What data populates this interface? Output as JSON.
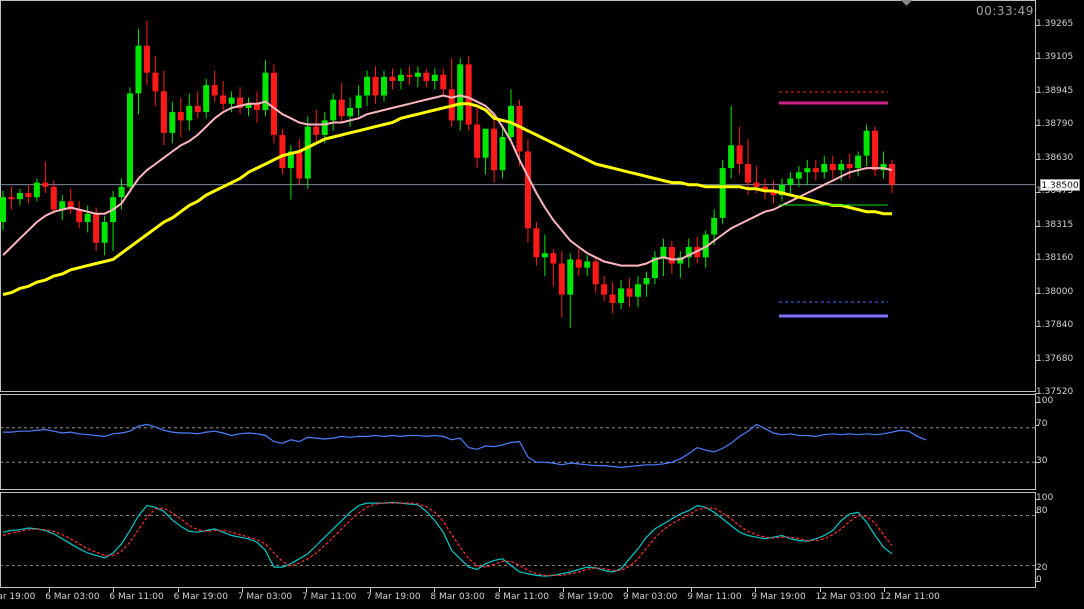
{
  "clock": "00:33:49",
  "current_price": "1.38500",
  "colors": {
    "bull": "#00e600",
    "bear": "#ff1a1a",
    "ma_fast": "#ffb6c1",
    "ma_slow": "#ffff00",
    "rsi": "#4a7fff",
    "stoch_main": "#00c8c8",
    "stoch_signal": "#ff3030",
    "upper_line": "#cc2288",
    "lower_line": "#8070ff"
  },
  "price_axis": {
    "labels": [
      "1.39265",
      "1.39105",
      "1.38945",
      "1.38790",
      "1.38630",
      "1.38475",
      "1.38315",
      "1.38160",
      "1.38000",
      "1.37840",
      "1.37680",
      "1.37520"
    ],
    "range": [
      1.3752,
      1.39265
    ]
  },
  "rsi_axis": {
    "labels": [
      "100",
      "70",
      "30"
    ],
    "levels": [
      70,
      30
    ]
  },
  "stoch_axis": {
    "labels": [
      "100",
      "80",
      "20",
      "0"
    ],
    "levels": [
      80,
      20
    ]
  },
  "time_labels": [
    "5 Mar 19:00",
    "6 Mar 03:00",
    "6 Mar 11:00",
    "6 Mar 19:00",
    "7 Mar 03:00",
    "7 Mar 11:00",
    "7 Mar 19:00",
    "8 Mar 03:00",
    "8 Mar 11:00",
    "8 Mar 19:00",
    "9 Mar 03:00",
    "9 Mar 11:00",
    "9 Mar 19:00",
    "12 Mar 03:00",
    "12 Mar 11:00"
  ],
  "chart_data": {
    "type": "candlestick",
    "candles": [
      [
        1.3832,
        1.3847,
        1.3828,
        1.3844
      ],
      [
        1.3844,
        1.3849,
        1.3838,
        1.3843
      ],
      [
        1.3843,
        1.3848,
        1.384,
        1.3846
      ],
      [
        1.3846,
        1.385,
        1.3841,
        1.3844
      ],
      [
        1.3844,
        1.3853,
        1.3842,
        1.3851
      ],
      [
        1.3851,
        1.3861,
        1.3846,
        1.3849
      ],
      [
        1.3849,
        1.3852,
        1.3836,
        1.3838
      ],
      [
        1.3838,
        1.3845,
        1.3833,
        1.3842
      ],
      [
        1.3842,
        1.3848,
        1.3836,
        1.3838
      ],
      [
        1.3838,
        1.3842,
        1.3829,
        1.3832
      ],
      [
        1.3832,
        1.384,
        1.3827,
        1.3836
      ],
      [
        1.3836,
        1.3839,
        1.3818,
        1.3822
      ],
      [
        1.3822,
        1.3835,
        1.3816,
        1.3832
      ],
      [
        1.3832,
        1.3847,
        1.3818,
        1.3844
      ],
      [
        1.3844,
        1.3853,
        1.3838,
        1.3849
      ],
      [
        1.3849,
        1.3897,
        1.3846,
        1.3894
      ],
      [
        1.3894,
        1.3925,
        1.3884,
        1.3917
      ],
      [
        1.3917,
        1.3929,
        1.3898,
        1.3904
      ],
      [
        1.3904,
        1.3912,
        1.3888,
        1.3895
      ],
      [
        1.3895,
        1.3905,
        1.3869,
        1.3875
      ],
      [
        1.3875,
        1.389,
        1.387,
        1.3885
      ],
      [
        1.3885,
        1.3892,
        1.3873,
        1.3881
      ],
      [
        1.3881,
        1.3894,
        1.3876,
        1.3888
      ],
      [
        1.3888,
        1.3895,
        1.3882,
        1.3885
      ],
      [
        1.3885,
        1.3901,
        1.3882,
        1.3898
      ],
      [
        1.3898,
        1.3905,
        1.389,
        1.3893
      ],
      [
        1.3893,
        1.39,
        1.3886,
        1.3889
      ],
      [
        1.3889,
        1.3895,
        1.3885,
        1.3892
      ],
      [
        1.3892,
        1.3897,
        1.3884,
        1.3887
      ],
      [
        1.3887,
        1.3892,
        1.3883,
        1.3889
      ],
      [
        1.3889,
        1.3895,
        1.388,
        1.3886
      ],
      [
        1.3886,
        1.391,
        1.3883,
        1.3904
      ],
      [
        1.3904,
        1.3908,
        1.387,
        1.3874
      ],
      [
        1.3874,
        1.3877,
        1.3855,
        1.3858
      ],
      [
        1.3858,
        1.3869,
        1.3843,
        1.3866
      ],
      [
        1.3866,
        1.3872,
        1.385,
        1.3853
      ],
      [
        1.3853,
        1.3883,
        1.3848,
        1.3878
      ],
      [
        1.3878,
        1.3886,
        1.387,
        1.3874
      ],
      [
        1.3874,
        1.3885,
        1.387,
        1.3881
      ],
      [
        1.3881,
        1.3894,
        1.3876,
        1.3891
      ],
      [
        1.3891,
        1.3899,
        1.388,
        1.3883
      ],
      [
        1.3883,
        1.3892,
        1.3878,
        1.3887
      ],
      [
        1.3887,
        1.3898,
        1.3883,
        1.3893
      ],
      [
        1.3893,
        1.3905,
        1.3888,
        1.3902
      ],
      [
        1.3902,
        1.3907,
        1.3889,
        1.3893
      ],
      [
        1.3893,
        1.3905,
        1.389,
        1.3902
      ],
      [
        1.3902,
        1.3906,
        1.3896,
        1.39
      ],
      [
        1.39,
        1.3906,
        1.3896,
        1.3903
      ],
      [
        1.3903,
        1.3907,
        1.3898,
        1.3902
      ],
      [
        1.3902,
        1.3907,
        1.3897,
        1.3904
      ],
      [
        1.3904,
        1.3906,
        1.3897,
        1.39
      ],
      [
        1.39,
        1.3906,
        1.3896,
        1.3903
      ],
      [
        1.3903,
        1.3906,
        1.3893,
        1.3896
      ],
      [
        1.3896,
        1.3911,
        1.3878,
        1.3881
      ],
      [
        1.3881,
        1.3911,
        1.3876,
        1.3908
      ],
      [
        1.3908,
        1.3912,
        1.3876,
        1.3879
      ],
      [
        1.3879,
        1.3887,
        1.3858,
        1.3863
      ],
      [
        1.3863,
        1.3877,
        1.3855,
        1.3877
      ],
      [
        1.3877,
        1.3882,
        1.3851,
        1.3857
      ],
      [
        1.3857,
        1.3878,
        1.3853,
        1.3873
      ],
      [
        1.3873,
        1.3896,
        1.387,
        1.3888
      ],
      [
        1.3888,
        1.3891,
        1.3859,
        1.3866
      ],
      [
        1.3866,
        1.3872,
        1.3822,
        1.3829
      ],
      [
        1.3829,
        1.3832,
        1.3811,
        1.3815
      ],
      [
        1.3815,
        1.3826,
        1.3806,
        1.3817
      ],
      [
        1.3817,
        1.3819,
        1.3801,
        1.3812
      ],
      [
        1.3812,
        1.3818,
        1.3786,
        1.3797
      ],
      [
        1.3797,
        1.3817,
        1.3781,
        1.3814
      ],
      [
        1.3814,
        1.3819,
        1.3806,
        1.381
      ],
      [
        1.381,
        1.3816,
        1.3806,
        1.3813
      ],
      [
        1.3813,
        1.3815,
        1.3798,
        1.3802
      ],
      [
        1.3802,
        1.3806,
        1.3794,
        1.3797
      ],
      [
        1.3797,
        1.3803,
        1.3788,
        1.3793
      ],
      [
        1.3793,
        1.3804,
        1.379,
        1.38
      ],
      [
        1.38,
        1.3805,
        1.3791,
        1.3796
      ],
      [
        1.3796,
        1.3806,
        1.3791,
        1.3802
      ],
      [
        1.3802,
        1.3808,
        1.3796,
        1.3805
      ],
      [
        1.3805,
        1.3818,
        1.3802,
        1.3815
      ],
      [
        1.3815,
        1.3824,
        1.3806,
        1.382
      ],
      [
        1.382,
        1.3823,
        1.3807,
        1.3812
      ],
      [
        1.3812,
        1.3818,
        1.3805,
        1.3815
      ],
      [
        1.3815,
        1.3824,
        1.381,
        1.382
      ],
      [
        1.382,
        1.3825,
        1.3812,
        1.3815
      ],
      [
        1.3815,
        1.3828,
        1.381,
        1.3826
      ],
      [
        1.3826,
        1.3838,
        1.3821,
        1.3834
      ],
      [
        1.3834,
        1.3862,
        1.3831,
        1.3858
      ],
      [
        1.3858,
        1.3888,
        1.3853,
        1.3869
      ],
      [
        1.3869,
        1.3878,
        1.3855,
        1.386
      ],
      [
        1.386,
        1.3872,
        1.3845,
        1.3851
      ],
      [
        1.3851,
        1.3859,
        1.3846,
        1.3849
      ],
      [
        1.3849,
        1.3853,
        1.3843,
        1.3847
      ],
      [
        1.3847,
        1.3852,
        1.3841,
        1.3845
      ],
      [
        1.3845,
        1.3853,
        1.3842,
        1.385
      ],
      [
        1.385,
        1.3856,
        1.3845,
        1.3853
      ],
      [
        1.3853,
        1.3859,
        1.3849,
        1.3856
      ],
      [
        1.3856,
        1.3862,
        1.385,
        1.3858
      ],
      [
        1.3858,
        1.3862,
        1.3852,
        1.3856
      ],
      [
        1.3856,
        1.3864,
        1.3853,
        1.386
      ],
      [
        1.386,
        1.3864,
        1.3853,
        1.3857
      ],
      [
        1.3857,
        1.3862,
        1.3852,
        1.386
      ],
      [
        1.386,
        1.3865,
        1.3853,
        1.3858
      ],
      [
        1.3858,
        1.3866,
        1.3854,
        1.3864
      ],
      [
        1.3864,
        1.3879,
        1.3859,
        1.3876
      ],
      [
        1.3876,
        1.3878,
        1.3854,
        1.3857
      ],
      [
        1.3857,
        1.3866,
        1.3853,
        1.386
      ],
      [
        1.386,
        1.3862,
        1.3846,
        1.385
      ]
    ],
    "ma_fast": [
      1.3816,
      1.382,
      1.3824,
      1.3828,
      1.3832,
      1.3835,
      1.3837,
      1.3838,
      1.3839,
      1.3838,
      1.3837,
      1.3836,
      1.3836,
      1.3838,
      1.3841,
      1.3847,
      1.3853,
      1.3857,
      1.386,
      1.3863,
      1.3866,
      1.3869,
      1.3871,
      1.3874,
      1.3878,
      1.3882,
      1.3885,
      1.3887,
      1.3888,
      1.3889,
      1.3889,
      1.389,
      1.3887,
      1.3884,
      1.3882,
      1.388,
      1.3879,
      1.3879,
      1.3879,
      1.388,
      1.388,
      1.3881,
      1.3882,
      1.3884,
      1.3885,
      1.3886,
      1.3887,
      1.3888,
      1.3889,
      1.389,
      1.3891,
      1.3892,
      1.3893,
      1.3892,
      1.3893,
      1.3892,
      1.389,
      1.3888,
      1.3884,
      1.3878,
      1.3871,
      1.3862,
      1.3854,
      1.3846,
      1.3839,
      1.3833,
      1.3828,
      1.3823,
      1.382,
      1.3817,
      1.3815,
      1.3813,
      1.3812,
      1.3811,
      1.3811,
      1.3811,
      1.3812,
      1.3814,
      1.3815,
      1.3814,
      1.3814,
      1.3816,
      1.3818,
      1.382,
      1.3823,
      1.3826,
      1.3829,
      1.3831,
      1.3833,
      1.3835,
      1.3837,
      1.3838,
      1.384,
      1.3842,
      1.3844,
      1.3846,
      1.3848,
      1.385,
      1.3852,
      1.3854,
      1.3856,
      1.3857,
      1.3858,
      1.3858,
      1.3858,
      1.3857
    ],
    "ma_slow": [
      1.3797,
      1.3798,
      1.38,
      1.3801,
      1.3803,
      1.3804,
      1.3806,
      1.3807,
      1.3809,
      1.381,
      1.3811,
      1.3812,
      1.3813,
      1.3814,
      1.3817,
      1.382,
      1.3823,
      1.3826,
      1.3829,
      1.3832,
      1.3834,
      1.3837,
      1.384,
      1.3842,
      1.3845,
      1.3847,
      1.3849,
      1.3851,
      1.3853,
      1.3856,
      1.3858,
      1.386,
      1.3862,
      1.3864,
      1.3865,
      1.3866,
      1.3868,
      1.387,
      1.3872,
      1.3873,
      1.3874,
      1.3875,
      1.3876,
      1.3877,
      1.3878,
      1.3879,
      1.388,
      1.3882,
      1.3883,
      1.3884,
      1.3885,
      1.3886,
      1.3887,
      1.3888,
      1.3889,
      1.3889,
      1.3888,
      1.3886,
      1.3882,
      1.3881,
      1.388,
      1.3878,
      1.3876,
      1.3874,
      1.3872,
      1.387,
      1.3868,
      1.3866,
      1.3864,
      1.3862,
      1.386,
      1.3859,
      1.3858,
      1.3857,
      1.3856,
      1.3855,
      1.3854,
      1.3853,
      1.3852,
      1.3851,
      1.3851,
      1.385,
      1.385,
      1.3849,
      1.3849,
      1.3849,
      1.3849,
      1.3849,
      1.3848,
      1.3848,
      1.3847,
      1.3847,
      1.3846,
      1.3845,
      1.3844,
      1.3843,
      1.3842,
      1.3841,
      1.384,
      1.384,
      1.3839,
      1.3838,
      1.3837,
      1.3837,
      1.3836,
      1.3836
    ],
    "rsi": [
      65,
      65,
      66,
      66,
      67,
      68,
      66,
      64,
      65,
      63,
      62,
      61,
      60,
      63,
      64,
      66,
      72,
      74,
      71,
      67,
      65,
      64,
      64,
      63,
      65,
      66,
      64,
      61,
      63,
      64,
      63,
      61,
      54,
      52,
      56,
      54,
      59,
      58,
      57,
      58,
      60,
      59,
      60,
      60,
      61,
      60,
      61,
      60,
      61,
      61,
      60,
      61,
      60,
      56,
      58,
      47,
      45,
      49,
      48,
      50,
      53,
      54,
      36,
      30,
      30,
      29,
      27,
      29,
      28,
      27,
      26,
      26,
      25,
      24,
      25,
      26,
      27,
      27,
      28,
      30,
      34,
      40,
      47,
      44,
      42,
      46,
      52,
      60,
      66,
      74,
      69,
      64,
      62,
      63,
      61,
      61,
      60,
      62,
      63,
      62,
      63,
      62,
      63,
      62,
      63,
      65,
      67,
      66,
      60,
      56
    ],
    "stoch_main": [
      60,
      62,
      63,
      65,
      64,
      62,
      58,
      52,
      46,
      40,
      35,
      32,
      29,
      35,
      46,
      62,
      80,
      92,
      90,
      85,
      75,
      67,
      61,
      60,
      62,
      64,
      60,
      56,
      54,
      52,
      48,
      38,
      18,
      18,
      22,
      28,
      34,
      44,
      54,
      64,
      74,
      84,
      92,
      95,
      95,
      95,
      96,
      95,
      94,
      93,
      85,
      74,
      60,
      38,
      28,
      18,
      15,
      22,
      26,
      28,
      20,
      12,
      10,
      8,
      7,
      8,
      10,
      12,
      15,
      18,
      17,
      14,
      12,
      16,
      28,
      40,
      54,
      64,
      70,
      76,
      82,
      86,
      92,
      90,
      84,
      76,
      68,
      60,
      56,
      54,
      52,
      54,
      56,
      52,
      50,
      49,
      52,
      56,
      62,
      74,
      82,
      84,
      72,
      56,
      42,
      34
    ],
    "stoch_signal": [
      56,
      59,
      61,
      63,
      64,
      63,
      61,
      57,
      52,
      46,
      40,
      36,
      32,
      32,
      37,
      48,
      63,
      78,
      88,
      89,
      83,
      76,
      68,
      63,
      61,
      62,
      62,
      60,
      57,
      54,
      51,
      46,
      35,
      25,
      19,
      23,
      28,
      35,
      44,
      54,
      64,
      74,
      83,
      90,
      94,
      95,
      95,
      95,
      95,
      94,
      91,
      84,
      73,
      57,
      42,
      28,
      20,
      18,
      21,
      25,
      25,
      20,
      14,
      10,
      8,
      8,
      8,
      10,
      12,
      15,
      17,
      16,
      14,
      14,
      19,
      28,
      41,
      53,
      63,
      70,
      76,
      81,
      87,
      89,
      89,
      83,
      76,
      68,
      61,
      57,
      54,
      53,
      54,
      54,
      52,
      50,
      50,
      52,
      57,
      64,
      73,
      80,
      79,
      71,
      57,
      44
    ]
  }
}
